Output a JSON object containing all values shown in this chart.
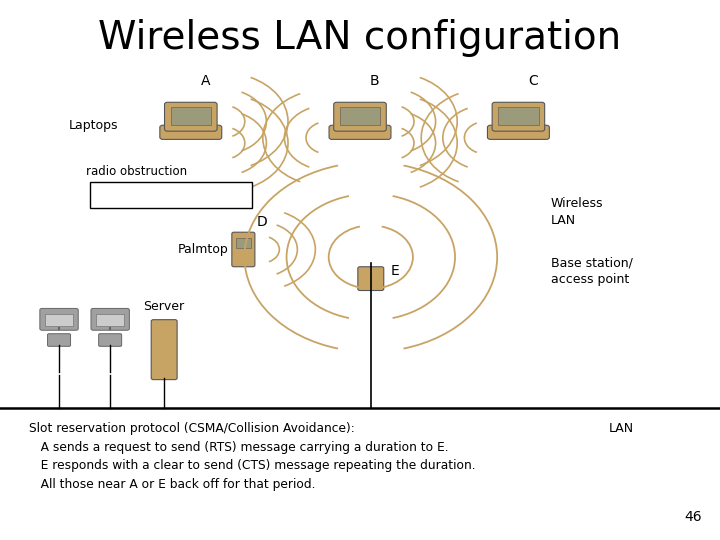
{
  "title": "Wireless LAN configuration",
  "title_fontsize": 28,
  "background_color": "#ffffff",
  "bottom_text_left": "Slot reservation protocol (CSMA/Collision Avoidance):\n   A sends a request to send (RTS) message carrying a duration to E.\n   E responds with a clear to send (CTS) message repeating the duration.\n   All those near A or E back off for that period.",
  "bottom_text_right": "LAN",
  "page_number": "46",
  "laptop_color": "#c8a464",
  "server_color": "#c8a464",
  "palmtop_color": "#c8a464",
  "base_color": "#c8a464",
  "desktop_color": "#a0a0a0",
  "wave_color": "#c8a464",
  "screen_color": "#9b9b7b"
}
